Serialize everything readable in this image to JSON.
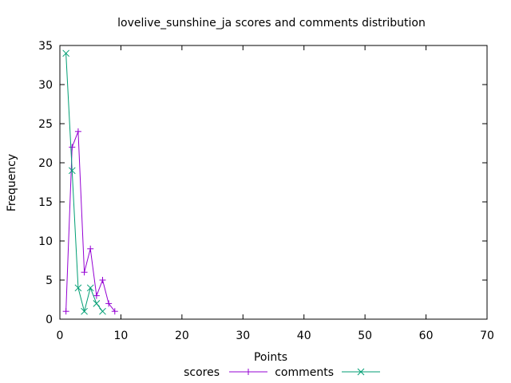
{
  "chart_data": {
    "type": "line",
    "title": "lovelive_sunshine_ja scores and comments distribution",
    "xlabel": "Points",
    "ylabel": "Frequency",
    "xlim": [
      0,
      70
    ],
    "ylim": [
      0,
      35
    ],
    "x_ticks": [
      0,
      10,
      20,
      30,
      40,
      50,
      60,
      70
    ],
    "y_ticks": [
      0,
      5,
      10,
      15,
      20,
      25,
      30,
      35
    ],
    "grid": false,
    "legend_position": "bottom-center",
    "series": [
      {
        "name": "scores",
        "color": "#9400d3",
        "marker": "plus",
        "x": [
          1,
          2,
          3,
          4,
          5,
          6,
          7,
          8,
          9
        ],
        "y": [
          1,
          22,
          24,
          6,
          9,
          3,
          5,
          2,
          1
        ]
      },
      {
        "name": "comments",
        "color": "#009e73",
        "marker": "cross",
        "x": [
          1,
          2,
          3,
          4,
          5,
          6,
          7
        ],
        "y": [
          34,
          19,
          4,
          1,
          4,
          2,
          1
        ]
      }
    ]
  }
}
